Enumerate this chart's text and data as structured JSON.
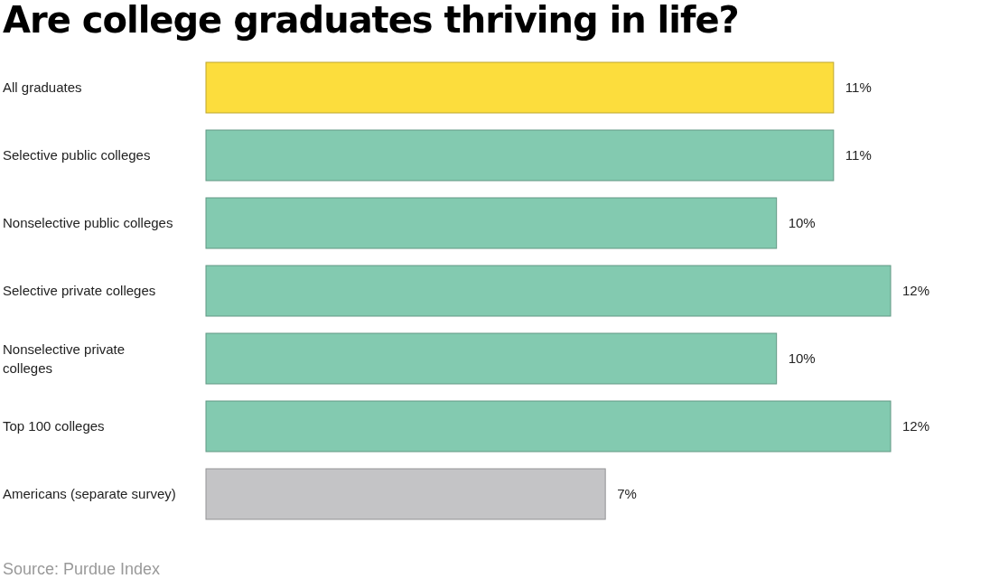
{
  "chart_data": {
    "type": "bar",
    "orientation": "horizontal",
    "title": "Are college graduates thriving in life?",
    "categories": [
      "All graduates",
      "Selective public colleges",
      "Nonselective public colleges",
      "Selective private colleges",
      "Nonselective private colleges",
      "Top 100 colleges",
      "Americans (separate survey)"
    ],
    "values": [
      11,
      11,
      10,
      12,
      10,
      12,
      7
    ],
    "colors": [
      "#fcdd3d",
      "#83cab0",
      "#83cab0",
      "#83cab0",
      "#83cab0",
      "#83cab0",
      "#c4c4c6"
    ],
    "value_labels": [
      "11%",
      "11%",
      "10%",
      "12%",
      "10%",
      "12%",
      "7%"
    ],
    "annotations": [
      "Source: Purdue Index"
    ]
  }
}
